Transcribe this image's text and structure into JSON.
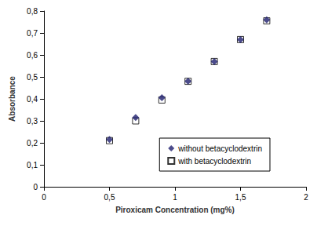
{
  "chart_data": {
    "type": "scatter",
    "x_label": "Piroxicam Concentration (mg%)",
    "y_label": "Absorbance",
    "xlim": [
      0,
      2
    ],
    "xticks": [
      0,
      {
        "value": 0.5,
        "label": "0,5"
      },
      1,
      {
        "value": 1.5,
        "label": "1,5"
      },
      2
    ],
    "ylim": [
      0,
      0.8
    ],
    "yticks": [
      0,
      {
        "value": 0.1,
        "label": "0,1"
      },
      {
        "value": 0.2,
        "label": "0,2"
      },
      {
        "value": 0.3,
        "label": "0,3"
      },
      {
        "value": 0.4,
        "label": "0,4"
      },
      {
        "value": 0.5,
        "label": "0,5"
      },
      {
        "value": 0.6,
        "label": "0,6"
      },
      {
        "value": 0.7,
        "label": "0,7"
      },
      {
        "value": 0.8,
        "label": "0,8"
      }
    ],
    "grid": false,
    "legend": "lower right",
    "series": [
      {
        "name": "without betacyclodextrin",
        "color": "#1f1f6e",
        "marker": "diamond",
        "x": [
          0.5,
          0.7,
          0.9,
          1.1,
          1.3,
          1.5,
          1.7
        ],
        "values": [
          0.215,
          0.315,
          0.405,
          0.48,
          0.57,
          0.67,
          0.76
        ]
      },
      {
        "name": "with betacyclodextrin",
        "color": "#000000",
        "marker": "square",
        "x": [
          0.5,
          0.7,
          0.9,
          1.1,
          1.3,
          1.5,
          1.7
        ],
        "values": [
          0.21,
          0.3,
          0.395,
          0.48,
          0.57,
          0.67,
          0.755
        ]
      }
    ]
  }
}
